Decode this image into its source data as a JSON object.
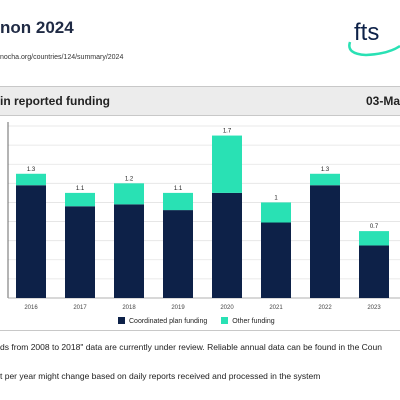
{
  "header": {
    "title": "non 2024",
    "url": "nocha.org/countries/124/summary/2024",
    "logo_text": "fts"
  },
  "chart_header": {
    "title": "in reported funding",
    "date": "03-Ma"
  },
  "legend": [
    {
      "label": "Coordinated plan funding",
      "color": "#0d2148"
    },
    {
      "label": "Other funding",
      "color": "#29e1b4"
    }
  ],
  "notes": [
    "ds from 2008 to 2018\" data are currently under review. Reliable annual data can be found in the Coun",
    "t per year might change based on daily reports received and processed in the system"
  ],
  "chart_data": {
    "type": "bar",
    "stacked": true,
    "categories": [
      "2016",
      "2017",
      "2018",
      "2019",
      "2020",
      "2021",
      "2022",
      "2023"
    ],
    "series": [
      {
        "name": "Coordinated plan funding",
        "color": "#0d2148",
        "values": [
          1.18,
          0.96,
          0.98,
          0.92,
          1.1,
          0.79,
          1.18,
          0.55
        ]
      },
      {
        "name": "Other funding",
        "color": "#29e1b4",
        "values": [
          0.12,
          0.14,
          0.22,
          0.18,
          0.6,
          0.21,
          0.12,
          0.15
        ]
      }
    ],
    "totals_labels": [
      "1.3",
      "1.1",
      "1.2",
      "1.1",
      "1.7",
      "1",
      "1.3",
      "0.7"
    ],
    "ylim": [
      0,
      1.8
    ],
    "grid": true
  }
}
